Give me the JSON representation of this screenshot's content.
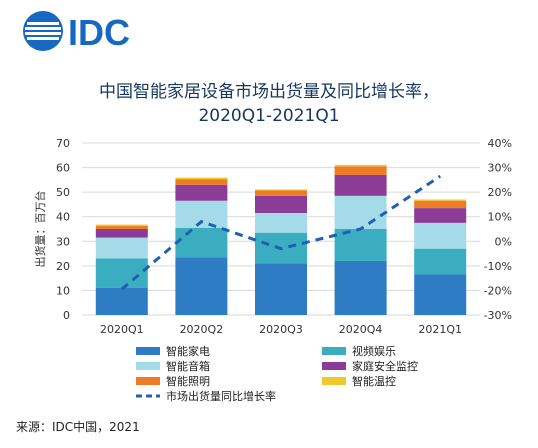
{
  "brand": {
    "logo_text": "IDC"
  },
  "title_lines": [
    "中国智能家居设备市场出货量及同比增长率，",
    "2020Q1-2021Q1"
  ],
  "source": "来源：IDC中国，2021",
  "colors": {
    "title": "#16375e",
    "logo": "#1668c1",
    "grid": "#d9d9d9",
    "line": "#1f5fb4"
  },
  "chart_data": {
    "type": "bar",
    "stacked": true,
    "categories": [
      "2020Q1",
      "2020Q2",
      "2020Q3",
      "2020Q4",
      "2021Q1"
    ],
    "ylabel": "出货量：百万台",
    "ylim": [
      0,
      70
    ],
    "yticks": [
      0,
      10,
      20,
      30,
      40,
      50,
      60,
      70
    ],
    "y2lim": [
      -30,
      40
    ],
    "y2ticks": [
      "40%",
      "30%",
      "20%",
      "10%",
      "0%",
      "-10%",
      "-20%",
      "-30%"
    ],
    "y2tick_values": [
      40,
      30,
      20,
      10,
      0,
      -10,
      -20,
      -30
    ],
    "grid": true,
    "series": [
      {
        "name": "智能家电",
        "color": "#2e7cc4",
        "values": [
          11,
          23.5,
          21,
          22,
          16.5
        ]
      },
      {
        "name": "视频娱乐",
        "color": "#3aaec0",
        "values": [
          12,
          12,
          12.5,
          13,
          10.5
        ]
      },
      {
        "name": "智能音箱",
        "color": "#a5dbe8",
        "values": [
          8.5,
          11,
          8,
          13.5,
          10.5
        ]
      },
      {
        "name": "家庭安全监控",
        "color": "#8a3c96",
        "values": [
          3.5,
          6.5,
          7,
          8.5,
          6
        ]
      },
      {
        "name": "智能照明",
        "color": "#ee7b26",
        "values": [
          1.3,
          2.3,
          2.2,
          3.5,
          3
        ]
      },
      {
        "name": "智能温控",
        "color": "#f0c92c",
        "values": [
          0.5,
          0.6,
          0.4,
          0.6,
          0.5
        ]
      }
    ],
    "line_series": {
      "name": "市场出货量同比增长率",
      "axis": "right",
      "values": [
        -19.5,
        8,
        -3,
        5,
        26.5
      ]
    },
    "legend_position": "bottom"
  }
}
